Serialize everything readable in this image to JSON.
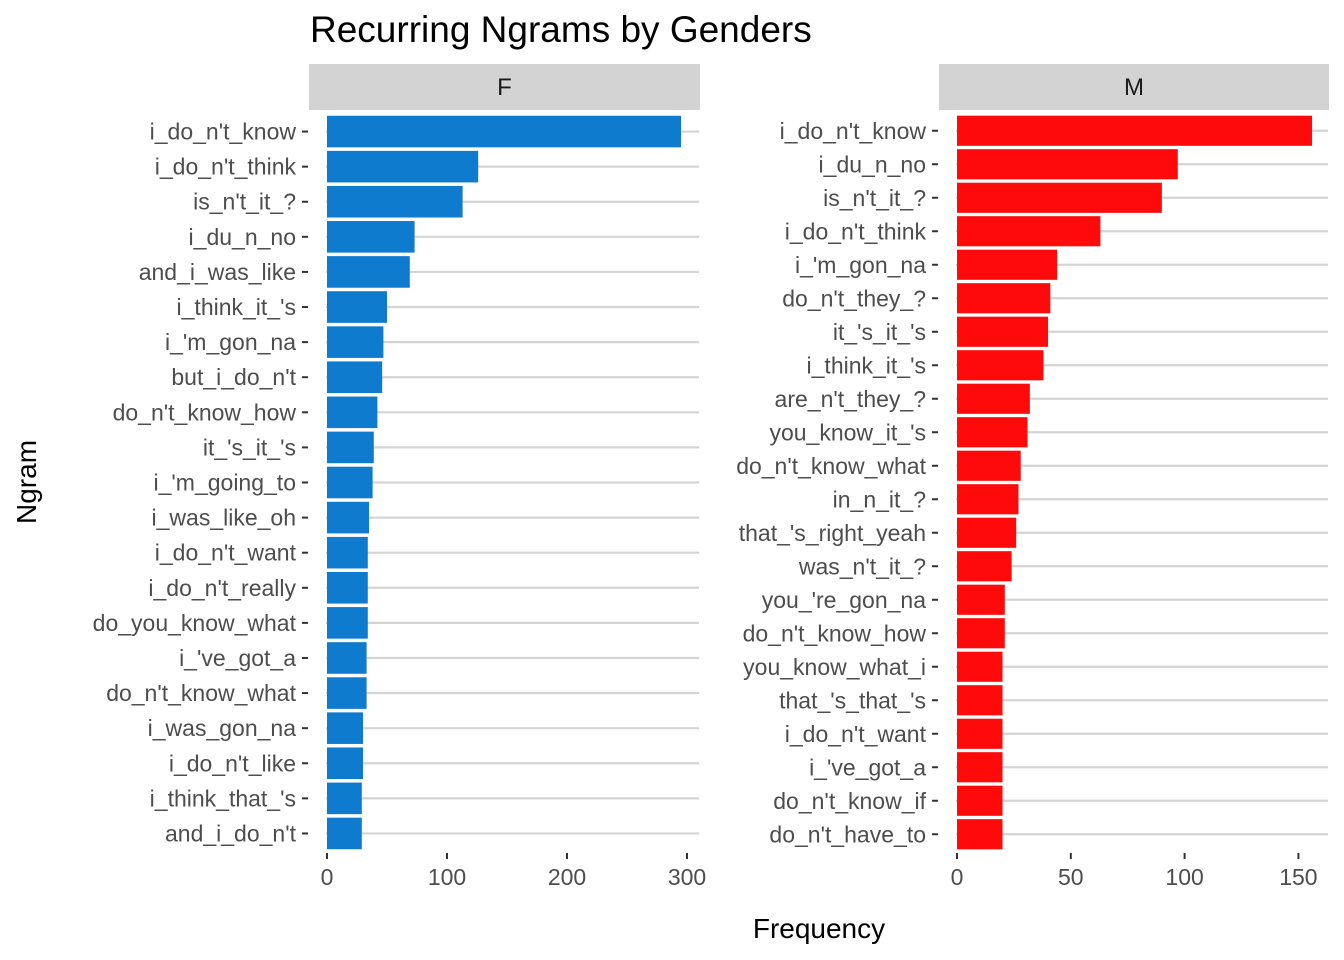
{
  "chart_data": {
    "type": "bar",
    "orientation": "horizontal",
    "title": "Recurring Ngrams by Genders",
    "xlabel": "Frequency",
    "ylabel": "Ngram",
    "grid": true,
    "panels": [
      {
        "name": "F",
        "color": "#0F7BCE",
        "xlim": [
          0,
          310
        ],
        "xticks": [
          0,
          100,
          200,
          300
        ],
        "categories": [
          "i_do_n't_know",
          "i_do_n't_think",
          "is_n't_it_?",
          "i_du_n_no",
          "and_i_was_like",
          "i_think_it_'s",
          "i_'m_gon_na",
          "but_i_do_n't",
          "do_n't_know_how",
          "it_'s_it_'s",
          "i_'m_going_to",
          "i_was_like_oh",
          "i_do_n't_want",
          "i_do_n't_really",
          "do_you_know_what",
          "i_'ve_got_a",
          "do_n't_know_what",
          "i_was_gon_na",
          "i_do_n't_like",
          "i_think_that_'s",
          "and_i_do_n't"
        ],
        "values": [
          295,
          126,
          113,
          73,
          69,
          50,
          47,
          46,
          42,
          39,
          38,
          35,
          34,
          34,
          34,
          33,
          33,
          30,
          30,
          29,
          29
        ]
      },
      {
        "name": "M",
        "color": "#FF0A0A",
        "xlim": [
          0,
          163
        ],
        "xticks": [
          0,
          50,
          100,
          150
        ],
        "categories": [
          "i_do_n't_know",
          "i_du_n_no",
          "is_n't_it_?",
          "i_do_n't_think",
          "i_'m_gon_na",
          "do_n't_they_?",
          "it_'s_it_'s",
          "i_think_it_'s",
          "are_n't_they_?",
          "you_know_it_'s",
          "do_n't_know_what",
          "in_n_it_?",
          "that_'s_right_yeah",
          "was_n't_it_?",
          "you_'re_gon_na",
          "do_n't_know_how",
          "you_know_what_i",
          "that_'s_that_'s",
          "i_do_n't_want",
          "i_'ve_got_a",
          "do_n't_know_if",
          "do_n't_have_to"
        ],
        "values": [
          156,
          97,
          90,
          63,
          44,
          41,
          40,
          38,
          32,
          31,
          28,
          27,
          26,
          24,
          21,
          21,
          20,
          20,
          20,
          20,
          20,
          20
        ]
      }
    ]
  }
}
